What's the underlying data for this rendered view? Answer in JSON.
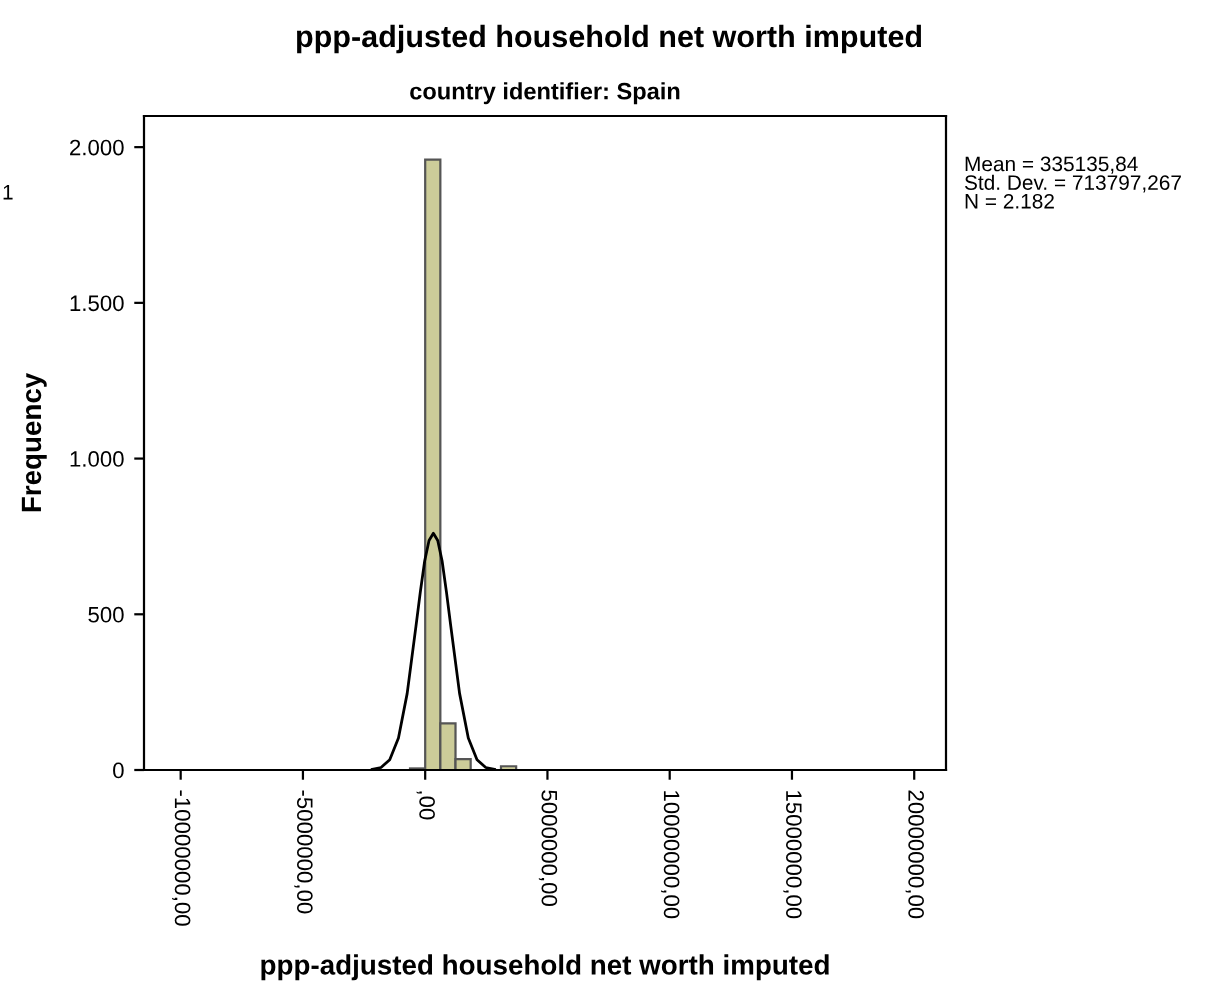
{
  "chart_data": {
    "type": "histogram",
    "title": "ppp-adjusted household net worth imputed",
    "subtitle": "country identifier: Spain",
    "xlabel": "ppp-adjusted household net worth imputed",
    "ylabel": "Frequency",
    "bins": [
      -620000,
      0,
      620000,
      1240000,
      1860000,
      2480000,
      3100000,
      3720000
    ],
    "values": [
      5,
      1960,
      150,
      35,
      null,
      null,
      12
    ],
    "color": "#cccc99",
    "series": [
      {
        "type": "line",
        "color": "#000000",
        "x": [
          -2165000,
          -1807000,
          -1450000,
          -1093000,
          -736000,
          -378000,
          -200000,
          -21000,
          157000,
          335000,
          513000,
          692000,
          870000,
          1048000,
          1406000,
          1763000,
          2120000,
          2477000,
          2835000
        ],
        "values": [
          2,
          8,
          33,
          103,
          246,
          461,
          571,
          671,
          737,
          760,
          737,
          671,
          571,
          461,
          246,
          103,
          33,
          8,
          2
        ]
      }
    ],
    "xlim": [
      -11500000,
      21300000
    ],
    "xticks": [
      {
        "value": -10000000,
        "label": "-10000000,00"
      },
      {
        "value": -5000000,
        "label": "-5000000,00"
      },
      {
        "value": 0,
        "label": ",00"
      },
      {
        "value": 5000000,
        "label": "5000000,00"
      },
      {
        "value": 10000000,
        "label": "10000000,00"
      },
      {
        "value": 15000000,
        "label": "15000000,00"
      },
      {
        "value": 20000000,
        "label": "20000000,00"
      }
    ],
    "ylim": [
      0,
      2100
    ],
    "yticks": [
      0,
      500,
      {
        "value": 1000,
        "label": "1.000"
      },
      {
        "value": 1500,
        "label": "1.500"
      },
      {
        "value": 2000,
        "label": "2.000"
      }
    ],
    "grid": false,
    "legend": false,
    "annotations": [
      "Mean = 335135,84\nStd. Dev. = 713797,267\nN = 2.182",
      "1"
    ]
  }
}
